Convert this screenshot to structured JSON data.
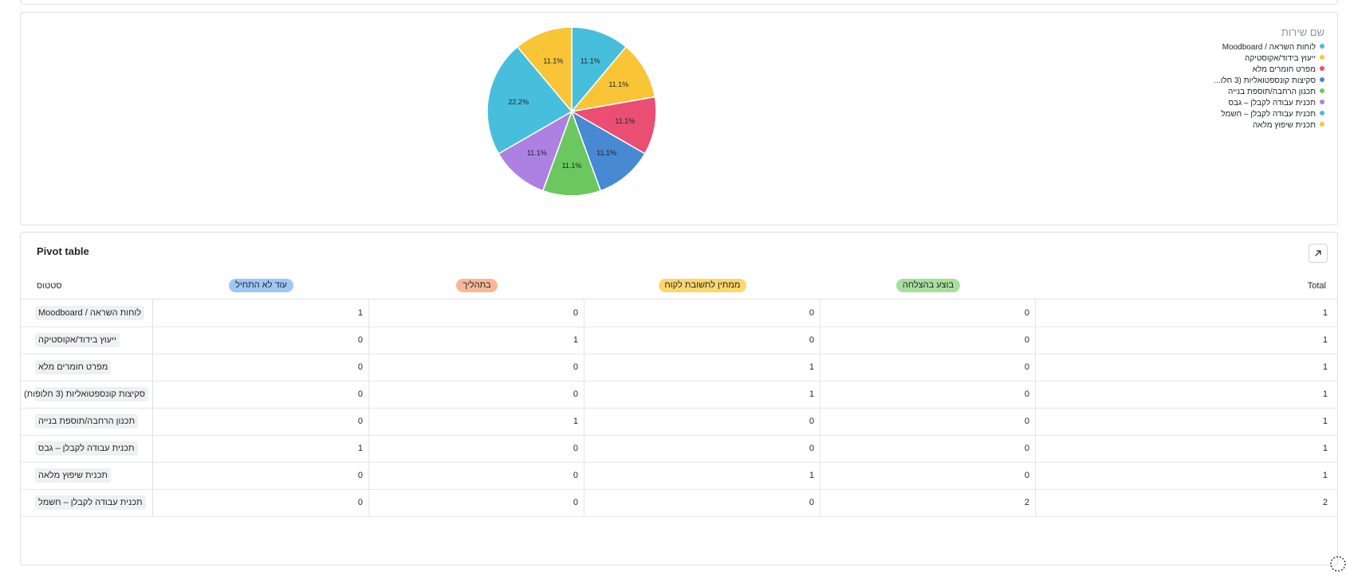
{
  "chart_data": {
    "type": "pie",
    "legend_title": "שם שירות",
    "legend_position": "top-right",
    "slices": [
      {
        "label": "לוחות השראה / Moodboard",
        "value": 11.1,
        "display": "11.1%",
        "color": "#47bfdc"
      },
      {
        "label": "ייעוץ בידוד/אקוסטיקה",
        "value": 11.1,
        "display": "11.1%",
        "color": "#f9c436"
      },
      {
        "label": "מפרט חומרים מלא",
        "value": 11.1,
        "display": "11.1%",
        "color": "#ea4f73"
      },
      {
        "label": "סקיצות קונספטואליות (3 חלו...",
        "value": 11.1,
        "display": "11.1%",
        "color": "#4789d2"
      },
      {
        "label": "תכנון הרחבה/תוספת בנייה",
        "value": 11.1,
        "display": "11.1%",
        "color": "#6dc760"
      },
      {
        "label": "תכנית עבודה לקבלן – גבס",
        "value": 11.1,
        "display": "11.1%",
        "color": "#ad81e1"
      },
      {
        "label": "תכנית עבודה לקבלן – חשמל",
        "value": 22.2,
        "display": "22.2%",
        "color": "#47bfdc"
      },
      {
        "label": "תכנית שיפוץ מלאה",
        "value": 11.1,
        "display": "11.1%",
        "color": "#f9c436"
      }
    ]
  },
  "pivot": {
    "title": "Pivot table",
    "row_header": "סטטוס",
    "total_label": "Total",
    "columns": [
      {
        "label": "עוד לא התחיל",
        "color": "#9cc7f7"
      },
      {
        "label": "בתהליך",
        "color": "#f7b898"
      },
      {
        "label": "ממתין לתשובת לקוח",
        "color": "#fcd76c"
      },
      {
        "label": "בוצע בהצלחה",
        "color": "#a7df9c"
      }
    ],
    "rows": [
      {
        "label": "לוחות השראה / Moodboard",
        "values": [
          "1",
          "0",
          "0",
          "0"
        ],
        "total": "1"
      },
      {
        "label": "ייעוץ בידוד/אקוסטיקה",
        "values": [
          "0",
          "1",
          "0",
          "0"
        ],
        "total": "1"
      },
      {
        "label": "מפרט חומרים מלא",
        "values": [
          "0",
          "0",
          "1",
          "0"
        ],
        "total": "1"
      },
      {
        "label": "סקיצות קונספטואליות (3 חלופות)",
        "values": [
          "0",
          "0",
          "1",
          "0"
        ],
        "total": "1"
      },
      {
        "label": "תכנון הרחבה/תוספת בנייה",
        "values": [
          "0",
          "1",
          "0",
          "0"
        ],
        "total": "1"
      },
      {
        "label": "תכנית עבודה לקבלן – גבס",
        "values": [
          "1",
          "0",
          "0",
          "0"
        ],
        "total": "1"
      },
      {
        "label": "תכנית שיפוץ מלאה",
        "values": [
          "0",
          "0",
          "1",
          "0"
        ],
        "total": "1"
      },
      {
        "label": "תכנית עבודה לקבלן – חשמל",
        "values": [
          "0",
          "0",
          "0",
          "2"
        ],
        "total": "2"
      }
    ]
  }
}
